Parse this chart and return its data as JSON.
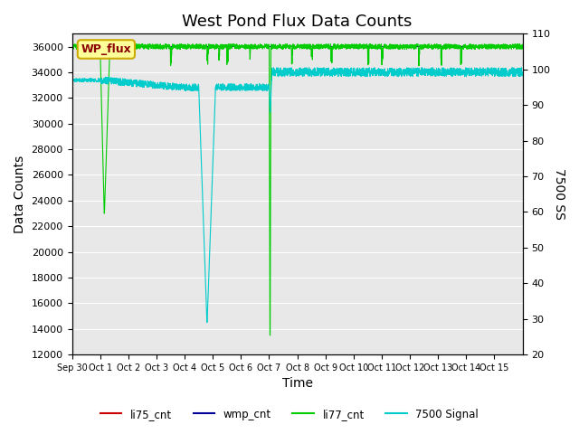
{
  "title": "West Pond Flux Data Counts",
  "xlabel": "Time",
  "ylabel_left": "Data Counts",
  "ylabel_right": "7500 SS",
  "ylim_left": [
    12000,
    37000
  ],
  "ylim_right": [
    20,
    110
  ],
  "background_color": "#e8e8e8",
  "legend_labels": [
    "li75_cnt",
    "wmp_cnt",
    "li77_cnt",
    "7500 Signal"
  ],
  "legend_colors": [
    "#cc0000",
    "#000099",
    "#00cc00",
    "#00cccc"
  ],
  "annotation_text": "WP_flux",
  "title_fontsize": 13,
  "axis_label_fontsize": 10,
  "tick_label_fontsize": 8,
  "xtick_labels": [
    "Sep 30",
    "Oct 1",
    "Oct 2",
    "Oct 3",
    "Oct 4",
    "Oct 5",
    "Oct 6",
    "Oct 7",
    "Oct 8",
    "Oct 9",
    "Oct 10",
    "Oct 11",
    "Oct 12",
    "Oct 13",
    "Oct 14",
    "Oct 15"
  ],
  "yticks_left": [
    12000,
    14000,
    16000,
    18000,
    20000,
    22000,
    24000,
    26000,
    28000,
    30000,
    32000,
    34000,
    36000
  ],
  "yticks_right": [
    20,
    30,
    40,
    50,
    60,
    70,
    80,
    90,
    100,
    110
  ]
}
